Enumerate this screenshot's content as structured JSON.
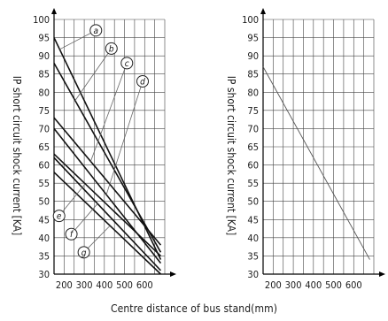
{
  "shared_xlabel": "Centre distance of bus stand(mm)",
  "chart_data": [
    {
      "type": "line",
      "ylabel": "IP short circuit shock current [KA]",
      "xlabel": "Centre distance of bus stand(mm)",
      "ylim": [
        30,
        100
      ],
      "xlim": [
        150,
        700
      ],
      "yticks": [
        30,
        35,
        40,
        45,
        50,
        55,
        60,
        65,
        70,
        75,
        80,
        85,
        90,
        95,
        100
      ],
      "xticks": [
        200,
        300,
        400,
        500,
        600
      ],
      "grid": true,
      "series": [
        {
          "name": "a",
          "x": [
            150,
            680
          ],
          "y": [
            95,
            34
          ]
        },
        {
          "name": "b",
          "x": [
            150,
            680
          ],
          "y": [
            88,
            36
          ]
        },
        {
          "name": "c",
          "x": [
            150,
            680
          ],
          "y": [
            73,
            38
          ]
        },
        {
          "name": "d",
          "x": [
            150,
            680
          ],
          "y": [
            70,
            33
          ]
        },
        {
          "name": "e",
          "x": [
            150,
            680
          ],
          "y": [
            63,
            35
          ]
        },
        {
          "name": "f",
          "x": [
            150,
            680
          ],
          "y": [
            62,
            31
          ]
        },
        {
          "name": "g",
          "x": [
            150,
            680
          ],
          "y": [
            58,
            30
          ]
        }
      ],
      "annotations": [
        {
          "label": "a",
          "x": 358,
          "y": 97
        },
        {
          "label": "b",
          "x": 435,
          "y": 92
        },
        {
          "label": "c",
          "x": 512,
          "y": 88
        },
        {
          "label": "d",
          "x": 590,
          "y": 83
        },
        {
          "label": "e",
          "x": 175,
          "y": 46
        },
        {
          "label": "f",
          "x": 236,
          "y": 41
        },
        {
          "label": "g",
          "x": 298,
          "y": 36
        }
      ]
    },
    {
      "type": "line",
      "ylabel": "IP short circuit shock current [KA]",
      "xlabel": "Centre distance of bus stand(mm)",
      "ylim": [
        30,
        100
      ],
      "xlim": [
        150,
        700
      ],
      "yticks": [
        30,
        35,
        40,
        45,
        50,
        55,
        60,
        65,
        70,
        75,
        80,
        85,
        90,
        95,
        100
      ],
      "xticks": [
        200,
        300,
        400,
        500,
        600
      ],
      "grid": true,
      "series": [
        {
          "name": "",
          "x": [
            150,
            680
          ],
          "y": [
            87,
            34
          ]
        }
      ]
    }
  ]
}
